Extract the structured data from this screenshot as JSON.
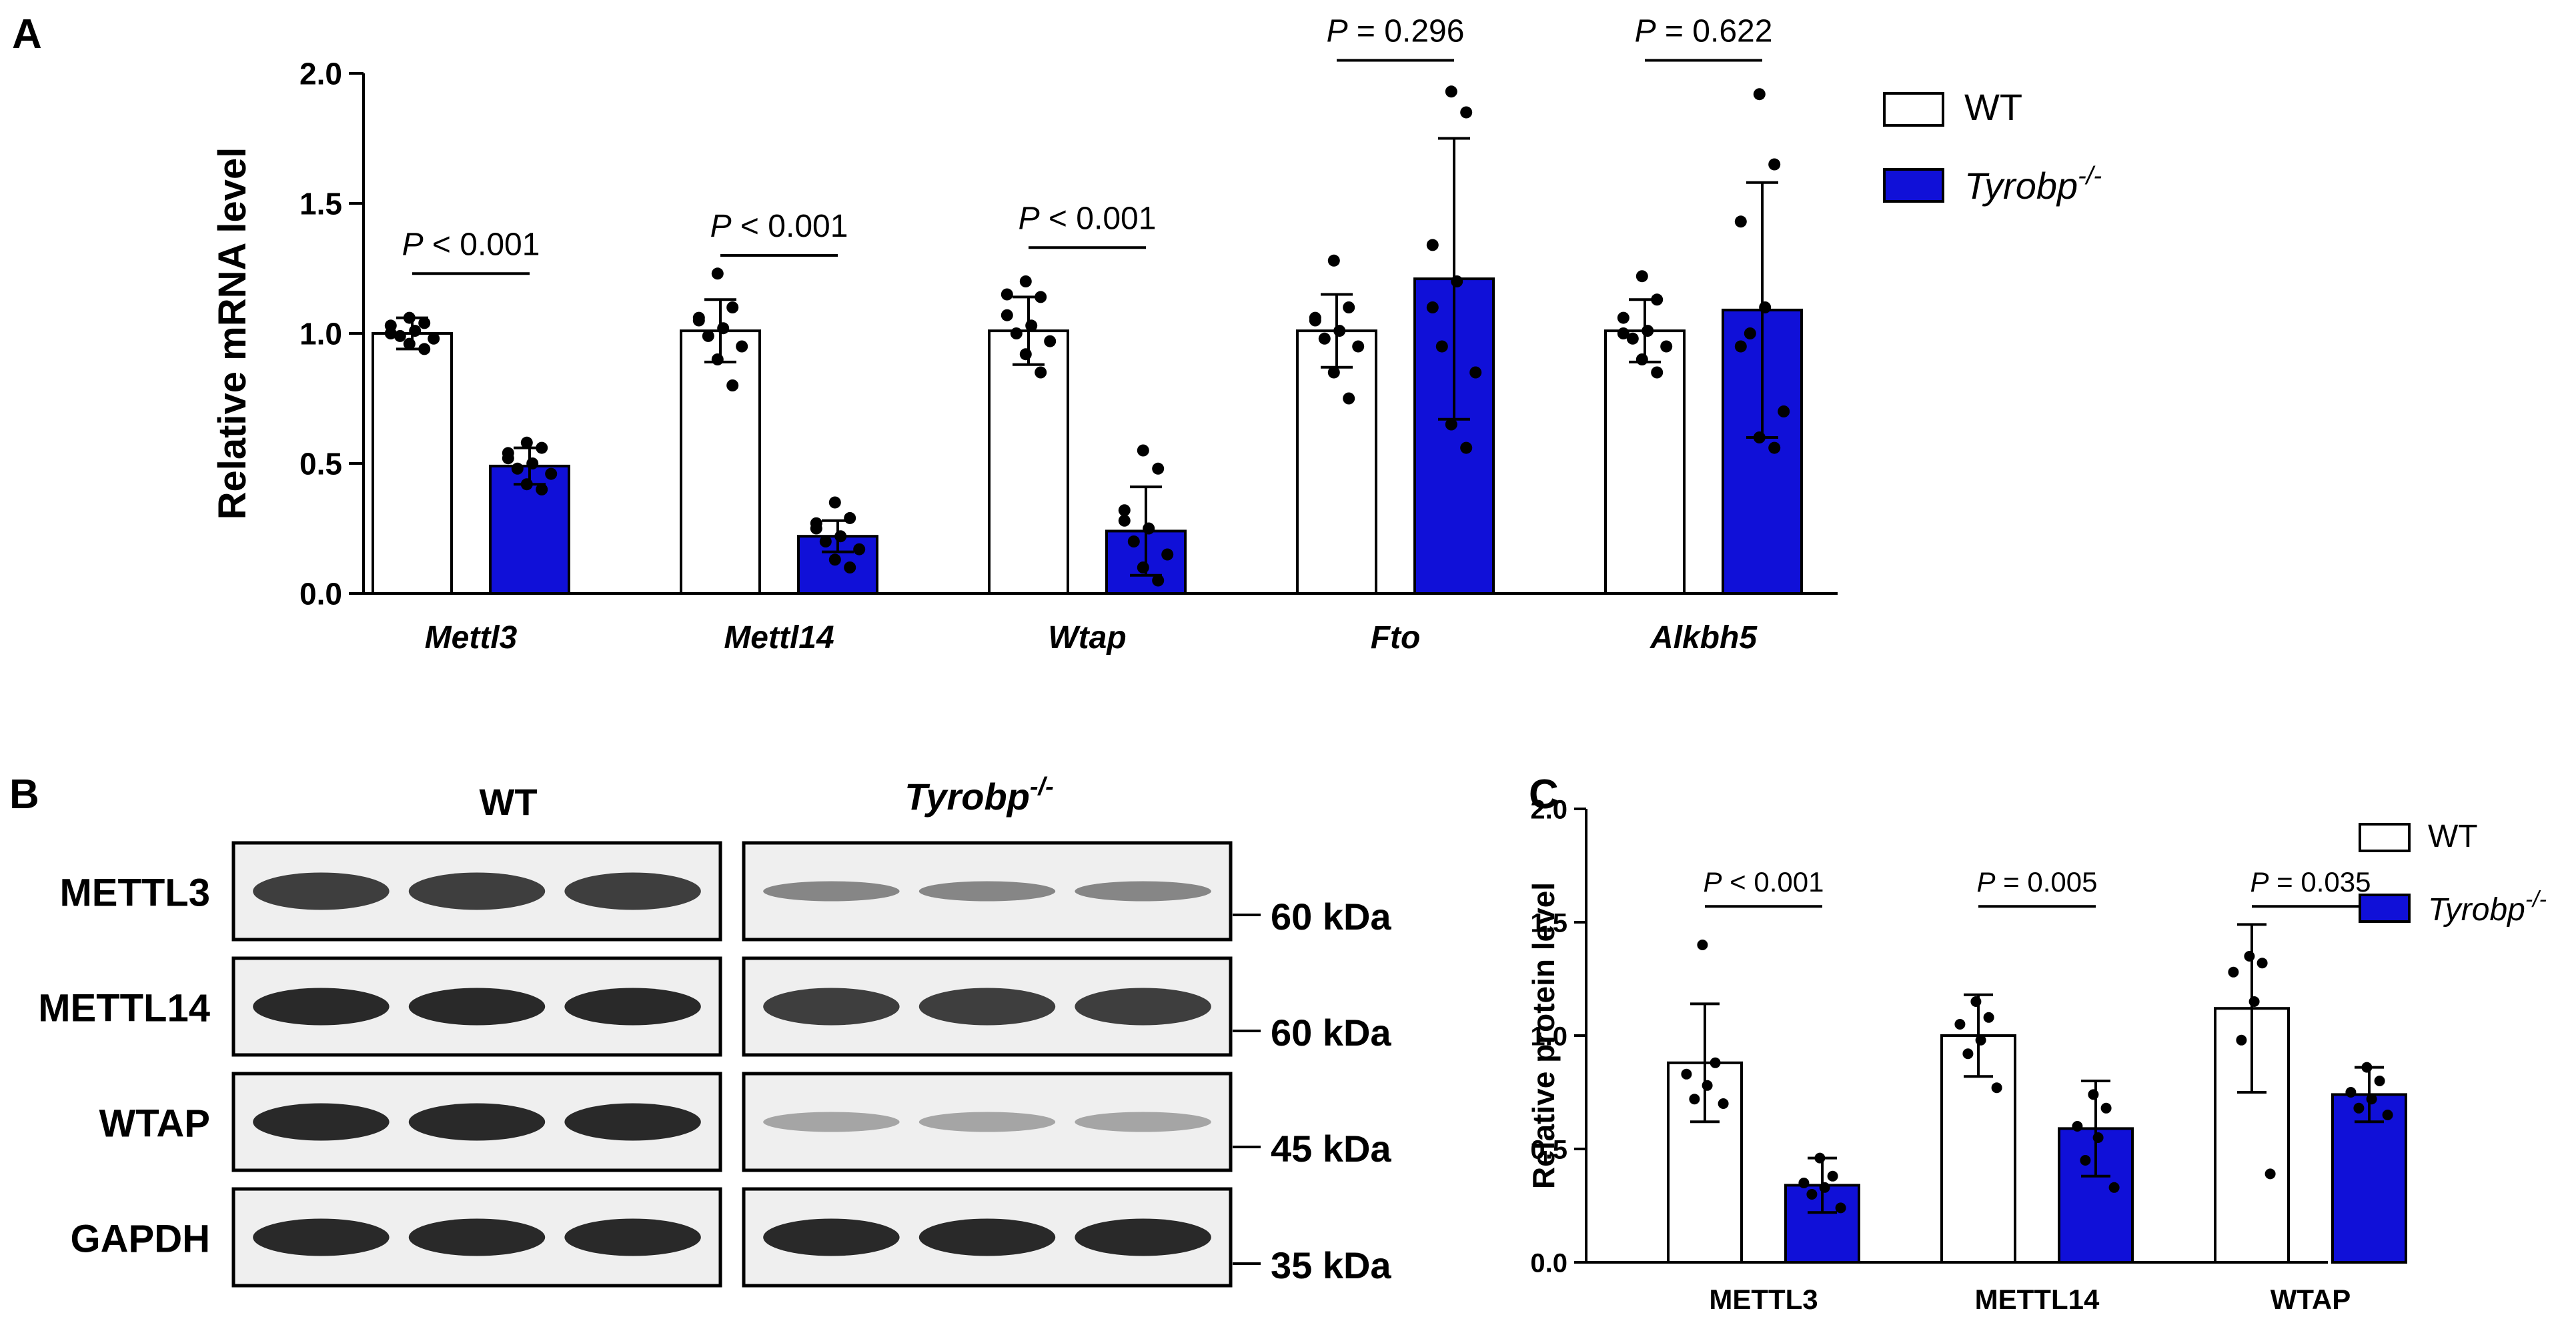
{
  "panel_labels": {
    "a": "A",
    "b": "B",
    "c": "C"
  },
  "colors": {
    "wt_fill": "#ffffff",
    "ko_fill": "#1010d8",
    "axis": "#000000",
    "blot_bg": "#efefef",
    "band": "#1e1e1e"
  },
  "legend": {
    "wt_label": "WT",
    "ko_label_main": "Tyrobp",
    "ko_label_sup": "-/-"
  },
  "western_blot": {
    "group_wt": "WT",
    "group_ko": "Tyrobp",
    "group_ko_sup": "-/-",
    "rows": [
      {
        "label": "METTL3",
        "marker": "60 kDa"
      },
      {
        "label": "METTL14",
        "marker": "60 kDa"
      },
      {
        "label": "WTAP",
        "marker": "45 kDa"
      },
      {
        "label": "GAPDH",
        "marker": "35 kDa"
      }
    ]
  },
  "chart_data": [
    {
      "panel": "A",
      "type": "bar",
      "ylabel": "Relative mRNA level",
      "ylim": [
        0,
        2.0
      ],
      "yticks": [
        "0.0",
        "0.5",
        "1.0",
        "1.5",
        "2.0"
      ],
      "categories": [
        "Mettl3",
        "Mettl14",
        "Wtap",
        "Fto",
        "Alkbh5"
      ],
      "series": [
        {
          "name": "WT",
          "values": [
            1.0,
            1.01,
            1.01,
            1.01,
            1.01
          ],
          "sd": [
            0.06,
            0.12,
            0.13,
            0.14,
            0.12
          ],
          "points": [
            [
              1.06,
              1.04,
              1.03,
              1.01,
              0.99,
              0.98,
              0.96,
              0.94,
              1.0
            ],
            [
              1.23,
              1.1,
              1.06,
              1.02,
              0.99,
              0.95,
              0.9,
              0.8,
              1.05
            ],
            [
              1.2,
              1.14,
              1.07,
              1.03,
              1.0,
              0.97,
              0.92,
              0.85,
              1.15
            ],
            [
              1.28,
              1.1,
              1.06,
              1.01,
              0.98,
              0.95,
              0.85,
              0.75,
              1.05
            ],
            [
              1.22,
              1.13,
              1.06,
              1.01,
              0.98,
              0.95,
              0.9,
              0.85,
              1.0
            ]
          ]
        },
        {
          "name": "Tyrobp-/-",
          "values": [
            0.49,
            0.22,
            0.24,
            1.21,
            1.09
          ],
          "sd": [
            0.07,
            0.06,
            0.17,
            0.54,
            0.49
          ],
          "points": [
            [
              0.58,
              0.56,
              0.52,
              0.5,
              0.48,
              0.46,
              0.42,
              0.4,
              0.54
            ],
            [
              0.35,
              0.29,
              0.25,
              0.22,
              0.2,
              0.17,
              0.13,
              0.1,
              0.27
            ],
            [
              0.55,
              0.48,
              0.32,
              0.25,
              0.2,
              0.15,
              0.1,
              0.05,
              0.28
            ],
            [
              1.93,
              1.85,
              1.34,
              1.2,
              0.95,
              0.85,
              0.65,
              0.56,
              1.1
            ],
            [
              1.92,
              1.65,
              1.43,
              1.1,
              1.0,
              0.7,
              0.6,
              0.56,
              0.95
            ]
          ]
        }
      ],
      "annotations": [
        {
          "p": "P",
          "text": " < 0.001",
          "y": 1.23
        },
        {
          "p": "P",
          "text": " < 0.001",
          "y": 1.3
        },
        {
          "p": "P",
          "text": " < 0.001",
          "y": 1.33
        },
        {
          "p": "P",
          "text": " = 0.296",
          "y": 2.05
        },
        {
          "p": "P",
          "text": " = 0.622",
          "y": 2.05
        }
      ]
    },
    {
      "panel": "C",
      "type": "bar",
      "ylabel": "Relative protein level",
      "ylim": [
        0,
        2.0
      ],
      "yticks": [
        "0.0",
        "0.5",
        "1.0",
        "1.5",
        "2.0"
      ],
      "categories": [
        "METTL3",
        "METTL14",
        "WTAP"
      ],
      "series": [
        {
          "name": "WT",
          "values": [
            0.88,
            1.0,
            1.12
          ],
          "sd": [
            0.26,
            0.18,
            0.37
          ],
          "points": [
            [
              1.4,
              0.88,
              0.83,
              0.78,
              0.72,
              0.7
            ],
            [
              1.15,
              1.08,
              1.05,
              0.98,
              0.92,
              0.77
            ],
            [
              1.35,
              1.32,
              1.28,
              1.15,
              0.98,
              0.39
            ]
          ]
        },
        {
          "name": "Tyrobp-/-",
          "values": [
            0.34,
            0.59,
            0.74
          ],
          "sd": [
            0.12,
            0.21,
            0.12
          ],
          "points": [
            [
              0.46,
              0.38,
              0.35,
              0.33,
              0.3,
              0.24
            ],
            [
              0.74,
              0.68,
              0.6,
              0.55,
              0.45,
              0.33
            ],
            [
              0.86,
              0.8,
              0.75,
              0.72,
              0.68,
              0.65
            ]
          ]
        }
      ],
      "annotations": [
        {
          "p": "P",
          "text": " < 0.001",
          "y": 1.57
        },
        {
          "p": "P",
          "text": " = 0.005",
          "y": 1.57
        },
        {
          "p": "P",
          "text": " = 0.035",
          "y": 1.57
        }
      ]
    }
  ]
}
